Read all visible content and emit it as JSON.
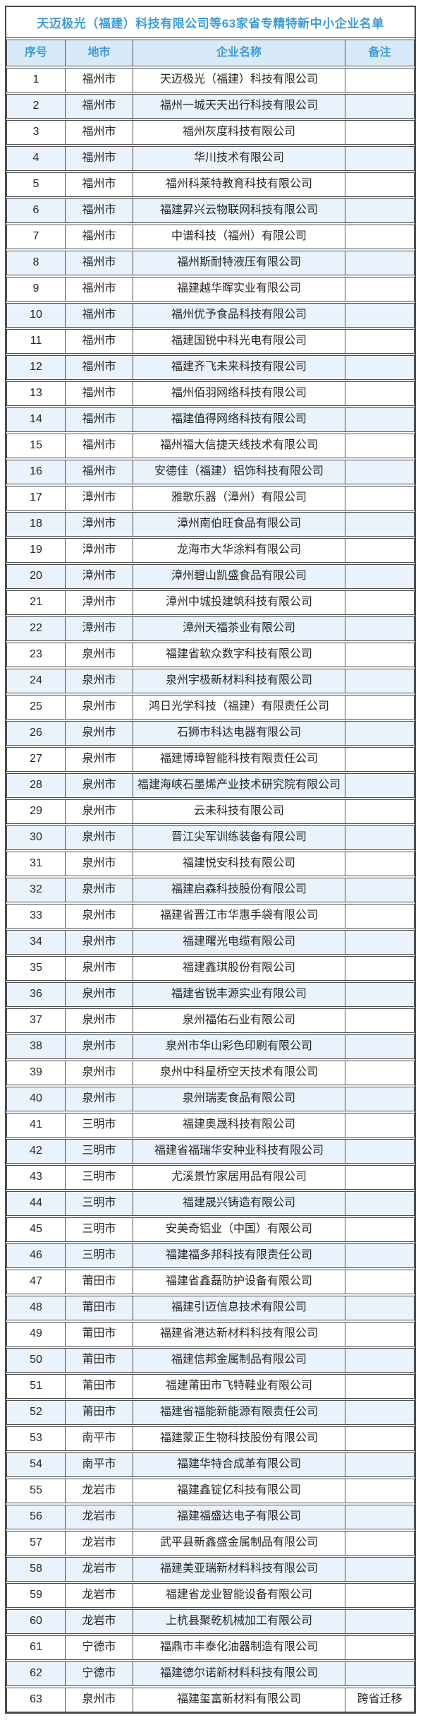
{
  "title": "天迈极光（福建）科技有限公司等63家省专精特新中小企业名单",
  "headers": {
    "no": "序号",
    "city": "地市",
    "company": "企业名称",
    "remark": "备注"
  },
  "colors": {
    "accent_blue": "#3f9cd6",
    "header_bg": "#d8e9f7",
    "stripe_bg": "#eaf2fb",
    "border": "#4e4e4e",
    "text": "#262626"
  },
  "table": {
    "rows": [
      {
        "no": "1",
        "city": "福州市",
        "name": "天迈极光（福建）科技有限公司",
        "remark": ""
      },
      {
        "no": "2",
        "city": "福州市",
        "name": "福州一城天天出行科技有限公司",
        "remark": ""
      },
      {
        "no": "3",
        "city": "福州市",
        "name": "福州灰度科技有限公司",
        "remark": ""
      },
      {
        "no": "4",
        "city": "福州市",
        "name": "华川技术有限公司",
        "remark": ""
      },
      {
        "no": "5",
        "city": "福州市",
        "name": "福州科莱特教育科技有限公司",
        "remark": ""
      },
      {
        "no": "6",
        "city": "福州市",
        "name": "福建昇兴云物联网科技有限公司",
        "remark": ""
      },
      {
        "no": "7",
        "city": "福州市",
        "name": "中谱科技（福州）有限公司",
        "remark": ""
      },
      {
        "no": "8",
        "city": "福州市",
        "name": "福州斯耐特液压有限公司",
        "remark": ""
      },
      {
        "no": "9",
        "city": "福州市",
        "name": "福建越华晖实业有限公司",
        "remark": ""
      },
      {
        "no": "10",
        "city": "福州市",
        "name": "福州优予食品科技有限公司",
        "remark": ""
      },
      {
        "no": "11",
        "city": "福州市",
        "name": "福建国锐中科光电有限公司",
        "remark": ""
      },
      {
        "no": "12",
        "city": "福州市",
        "name": "福建齐飞未来科技有限公司",
        "remark": ""
      },
      {
        "no": "13",
        "city": "福州市",
        "name": "福州佰羽网络科技有限公司",
        "remark": ""
      },
      {
        "no": "14",
        "city": "福州市",
        "name": "福建值得网络科技有限公司",
        "remark": ""
      },
      {
        "no": "15",
        "city": "福州市",
        "name": "福州福大信捷天线技术有限公司",
        "remark": ""
      },
      {
        "no": "16",
        "city": "福州市",
        "name": "安德佳（福建）铝饰科技有限公司",
        "remark": ""
      },
      {
        "no": "17",
        "city": "漳州市",
        "name": "雅歌乐器（漳州）有限公司",
        "remark": ""
      },
      {
        "no": "18",
        "city": "漳州市",
        "name": "漳州南伯旺食品有限公司",
        "remark": ""
      },
      {
        "no": "19",
        "city": "漳州市",
        "name": "龙海市大华涂料有限公司",
        "remark": ""
      },
      {
        "no": "20",
        "city": "漳州市",
        "name": "漳州碧山凯盛食品有限公司",
        "remark": ""
      },
      {
        "no": "21",
        "city": "漳州市",
        "name": "漳州中城投建筑科技有限公司",
        "remark": ""
      },
      {
        "no": "22",
        "city": "漳州市",
        "name": "漳州天福茶业有限公司",
        "remark": ""
      },
      {
        "no": "23",
        "city": "泉州市",
        "name": "福建省软众数字科技有限公司",
        "remark": ""
      },
      {
        "no": "24",
        "city": "泉州市",
        "name": "泉州宇极新材料科技有限公司",
        "remark": ""
      },
      {
        "no": "25",
        "city": "泉州市",
        "name": "鸿日光学科技（福建）有限责任公司",
        "remark": ""
      },
      {
        "no": "26",
        "city": "泉州市",
        "name": "石狮市科达电器有限公司",
        "remark": ""
      },
      {
        "no": "27",
        "city": "泉州市",
        "name": "福建博璋智能科技有限责任公司",
        "remark": ""
      },
      {
        "no": "28",
        "city": "泉州市",
        "name": "福建海峡石墨烯产业技术研究院有限公司",
        "remark": ""
      },
      {
        "no": "29",
        "city": "泉州市",
        "name": "云未科技有限公司",
        "remark": ""
      },
      {
        "no": "30",
        "city": "泉州市",
        "name": "晋江尖军训练装备有限公司",
        "remark": ""
      },
      {
        "no": "31",
        "city": "泉州市",
        "name": "福建悦安科技有限公司",
        "remark": ""
      },
      {
        "no": "32",
        "city": "泉州市",
        "name": "福建启森科技股份有限公司",
        "remark": ""
      },
      {
        "no": "33",
        "city": "泉州市",
        "name": "福建省晋江市华惠手袋有限公司",
        "remark": ""
      },
      {
        "no": "34",
        "city": "泉州市",
        "name": "福建曙光电缆有限公司",
        "remark": ""
      },
      {
        "no": "35",
        "city": "泉州市",
        "name": "福建鑫琪股份有限公司",
        "remark": ""
      },
      {
        "no": "36",
        "city": "泉州市",
        "name": "福建省锐丰源实业有限公司",
        "remark": ""
      },
      {
        "no": "37",
        "city": "泉州市",
        "name": "泉州福佑石业有限公司",
        "remark": ""
      },
      {
        "no": "38",
        "city": "泉州市",
        "name": "泉州市华山彩色印刷有限公司",
        "remark": ""
      },
      {
        "no": "39",
        "city": "泉州市",
        "name": "泉州中科星桥空天技术有限公司",
        "remark": ""
      },
      {
        "no": "40",
        "city": "泉州市",
        "name": "泉州瑞麦食品有限公司",
        "remark": ""
      },
      {
        "no": "41",
        "city": "三明市",
        "name": "福建奥晟科技有限公司",
        "remark": ""
      },
      {
        "no": "42",
        "city": "三明市",
        "name": "福建省福瑞华安种业科技有限公司",
        "remark": ""
      },
      {
        "no": "43",
        "city": "三明市",
        "name": "尤溪景竹家居用品有限公司",
        "remark": ""
      },
      {
        "no": "44",
        "city": "三明市",
        "name": "福建晟兴铸造有限公司",
        "remark": ""
      },
      {
        "no": "45",
        "city": "三明市",
        "name": "安美奇铝业（中国）有限公司",
        "remark": ""
      },
      {
        "no": "46",
        "city": "三明市",
        "name": "福建福多邦科技有限责任公司",
        "remark": ""
      },
      {
        "no": "47",
        "city": "莆田市",
        "name": "福建省鑫磊防护设备有限公司",
        "remark": ""
      },
      {
        "no": "48",
        "city": "莆田市",
        "name": "福建引迈信息技术有限公司",
        "remark": ""
      },
      {
        "no": "49",
        "city": "莆田市",
        "name": "福建省港达新材料科技有限公司",
        "remark": ""
      },
      {
        "no": "50",
        "city": "莆田市",
        "name": "福建信邦金属制品有限公司",
        "remark": ""
      },
      {
        "no": "51",
        "city": "莆田市",
        "name": "福建莆田市飞特鞋业有限公司",
        "remark": ""
      },
      {
        "no": "52",
        "city": "莆田市",
        "name": "福建省福能新能源有限责任公司",
        "remark": ""
      },
      {
        "no": "53",
        "city": "南平市",
        "name": "福建蒙正生物科技股份有限公司",
        "remark": ""
      },
      {
        "no": "54",
        "city": "南平市",
        "name": "福建华特合成革有限公司",
        "remark": ""
      },
      {
        "no": "55",
        "city": "龙岩市",
        "name": "福建鑫锭亿科技有限公司",
        "remark": ""
      },
      {
        "no": "56",
        "city": "龙岩市",
        "name": "福建福盛达电子有限公司",
        "remark": ""
      },
      {
        "no": "57",
        "city": "龙岩市",
        "name": "武平县新鑫盛金属制品有限公司",
        "remark": ""
      },
      {
        "no": "58",
        "city": "龙岩市",
        "name": "福建美亚瑞新材料科技有限公司",
        "remark": ""
      },
      {
        "no": "59",
        "city": "龙岩市",
        "name": "福建省龙业智能设备有限公司",
        "remark": ""
      },
      {
        "no": "60",
        "city": "龙岩市",
        "name": "上杭县聚乾机械加工有限公司",
        "remark": ""
      },
      {
        "no": "61",
        "city": "宁德市",
        "name": "福鼎市丰泰化油器制造有限公司",
        "remark": ""
      },
      {
        "no": "62",
        "city": "宁德市",
        "name": "福建德尔诺新材料科技有限公司",
        "remark": ""
      },
      {
        "no": "63",
        "city": "泉州市",
        "name": "福建玺富新材料有限公司",
        "remark": "跨省迁移"
      }
    ]
  }
}
